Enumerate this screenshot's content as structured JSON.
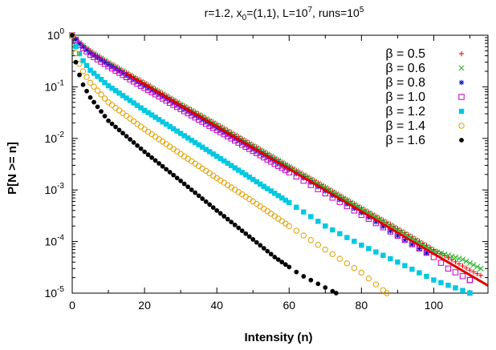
{
  "chart_data": {
    "type": "scatter",
    "title": "r=1.2, x₀=(1,1), L=10⁷, runs=10⁵",
    "title_parts": {
      "a": "r=1.2, x",
      "sub": "0",
      "b": "=(1,1), L=10",
      "sup": "7",
      "c": ", runs=10",
      "sup2": "5"
    },
    "xlabel": "Intensity (n)",
    "ylabel": "P[N >= n]",
    "xlim": [
      0,
      115
    ],
    "ylim": [
      1e-05,
      1
    ],
    "y_scale": "log",
    "x_ticks": [
      0,
      20,
      40,
      60,
      80,
      100
    ],
    "y_ticks": [
      {
        "value": 1,
        "base": "10",
        "exp": "0"
      },
      {
        "value": 0.1,
        "base": "10",
        "exp": "-1"
      },
      {
        "value": 0.01,
        "base": "10",
        "exp": "-2"
      },
      {
        "value": 0.001,
        "base": "10",
        "exp": "-3"
      },
      {
        "value": 0.0001,
        "base": "10",
        "exp": "-4"
      },
      {
        "value": 1e-05,
        "base": "10",
        "exp": "-5"
      }
    ],
    "legend_position": "top-right",
    "reference_line": {
      "color": "#e00000",
      "x": [
        15,
        115
      ],
      "y": [
        0.18,
        1.4e-05
      ]
    },
    "series": [
      {
        "name": "β = 0.5",
        "color": "#e00000",
        "marker": "plus",
        "curve": [
          [
            0,
            1
          ],
          [
            2,
            0.72
          ],
          [
            5,
            0.5
          ],
          [
            10,
            0.3
          ],
          [
            20,
            0.12
          ],
          [
            30,
            0.047
          ],
          [
            40,
            0.019
          ],
          [
            50,
            0.0075
          ],
          [
            60,
            0.0029
          ],
          [
            70,
            0.00115
          ],
          [
            80,
            0.00045
          ],
          [
            90,
            0.00018
          ],
          [
            100,
            7e-05
          ],
          [
            110,
            2.8e-05
          ],
          [
            113,
            2.2e-05
          ]
        ]
      },
      {
        "name": "β = 0.6",
        "color": "#20b020",
        "marker": "cross",
        "curve": [
          [
            0,
            1
          ],
          [
            2,
            0.71
          ],
          [
            5,
            0.48
          ],
          [
            10,
            0.29
          ],
          [
            20,
            0.115
          ],
          [
            30,
            0.045
          ],
          [
            40,
            0.018
          ],
          [
            50,
            0.0071
          ],
          [
            60,
            0.0028
          ],
          [
            70,
            0.0011
          ],
          [
            80,
            0.00043
          ],
          [
            90,
            0.00017
          ],
          [
            100,
            6.5e-05
          ],
          [
            108,
            4.5e-05
          ],
          [
            113,
            3e-05
          ]
        ]
      },
      {
        "name": "β = 0.8",
        "color": "#1010c0",
        "marker": "star",
        "curve": [
          [
            0,
            1
          ],
          [
            2,
            0.68
          ],
          [
            5,
            0.45
          ],
          [
            10,
            0.27
          ],
          [
            20,
            0.105
          ],
          [
            30,
            0.041
          ],
          [
            40,
            0.016
          ],
          [
            50,
            0.0063
          ],
          [
            60,
            0.0025
          ],
          [
            70,
            0.00095
          ],
          [
            80,
            0.00036
          ],
          [
            90,
            0.00013
          ],
          [
            95,
            8e-05
          ],
          [
            98,
            6e-05
          ]
        ]
      },
      {
        "name": "β = 1.0",
        "color": "#c000c0",
        "marker": "square-open",
        "curve": [
          [
            0,
            1
          ],
          [
            2,
            0.65
          ],
          [
            5,
            0.42
          ],
          [
            10,
            0.25
          ],
          [
            20,
            0.095
          ],
          [
            30,
            0.037
          ],
          [
            40,
            0.0145
          ],
          [
            50,
            0.0057
          ],
          [
            60,
            0.0022
          ],
          [
            70,
            0.00086
          ],
          [
            80,
            0.00033
          ],
          [
            90,
            0.00013
          ],
          [
            100,
            5e-05
          ],
          [
            104,
            3e-05
          ],
          [
            110,
            1.8e-05
          ]
        ]
      },
      {
        "name": "β = 1.2",
        "color": "#00c8e0",
        "marker": "square-filled",
        "curve": [
          [
            0,
            1
          ],
          [
            1,
            0.6
          ],
          [
            3,
            0.32
          ],
          [
            5,
            0.21
          ],
          [
            10,
            0.105
          ],
          [
            20,
            0.035
          ],
          [
            30,
            0.0125
          ],
          [
            40,
            0.0045
          ],
          [
            50,
            0.0016
          ],
          [
            60,
            0.00057
          ],
          [
            70,
            0.0002
          ],
          [
            80,
            8.5e-05
          ],
          [
            90,
            4e-05
          ],
          [
            100,
            1.8e-05
          ],
          [
            110,
            1e-05
          ]
        ]
      },
      {
        "name": "β = 1.4",
        "color": "#e0a000",
        "marker": "circle-open",
        "curve": [
          [
            0,
            1
          ],
          [
            1,
            0.45
          ],
          [
            2,
            0.28
          ],
          [
            3,
            0.2
          ],
          [
            5,
            0.12
          ],
          [
            10,
            0.05
          ],
          [
            20,
            0.015
          ],
          [
            30,
            0.005
          ],
          [
            40,
            0.0017
          ],
          [
            50,
            0.0006
          ],
          [
            60,
            0.0002
          ],
          [
            70,
            7e-05
          ],
          [
            80,
            2.5e-05
          ],
          [
            87,
            1e-05
          ]
        ]
      },
      {
        "name": "β = 1.6",
        "color": "#000000",
        "marker": "circle-filled",
        "curve": [
          [
            0,
            1
          ],
          [
            1,
            0.3
          ],
          [
            2,
            0.17
          ],
          [
            3,
            0.11
          ],
          [
            5,
            0.062
          ],
          [
            10,
            0.022
          ],
          [
            20,
            0.0055
          ],
          [
            30,
            0.0015
          ],
          [
            40,
            0.0004
          ],
          [
            50,
            0.00011
          ],
          [
            56,
            5e-05
          ],
          [
            63,
            2.3e-05
          ],
          [
            73,
            1e-05
          ]
        ]
      }
    ]
  }
}
